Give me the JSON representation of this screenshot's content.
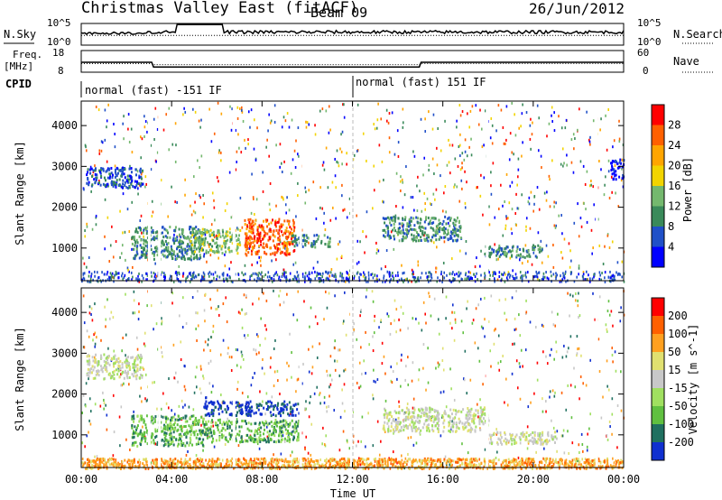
{
  "header": {
    "title": "Christmas Valley East (fitACF)",
    "beam": "Beam 09",
    "date": "26/Jun/2012"
  },
  "colors": {
    "power": [
      "#0000ff",
      "#2050c8",
      "#3a8a5a",
      "#74b86e",
      "#f2d400",
      "#ffa500",
      "#ff6000",
      "#ff0000"
    ],
    "velocity": [
      "#1030d0",
      "#207060",
      "#60c040",
      "#a0e060",
      "#c8c8c8",
      "#e0e070",
      "#ffa020",
      "#ff6000",
      "#ff0000"
    ],
    "gray": "#c8c8c8"
  },
  "nsky": {
    "label": "N.Sky",
    "ticks": [
      "10^5",
      "10^0"
    ],
    "right_label": "N.Search",
    "right_ticks": [
      "10^5",
      "10^0"
    ]
  },
  "freq": {
    "label_line1": "Freq.",
    "label_line2": "[MHz]",
    "ticks": [
      "18",
      "8"
    ],
    "right_label": "Nave",
    "right_ticks": [
      "60",
      "0"
    ]
  },
  "cpid": {
    "label": "CPID",
    "segments": [
      "normal (fast) -151 IF",
      "normal (fast) 151 IF"
    ]
  },
  "chart_data": [
    {
      "type": "heatmap",
      "title": "",
      "xlabel": "",
      "ylabel": "Slant Range [km]",
      "x_ticks": [
        "00:00",
        "04:00",
        "08:00",
        "12:00",
        "16:00",
        "20:00",
        "00:00"
      ],
      "y_ticks": [
        1000,
        2000,
        3000,
        4000
      ],
      "ylim": [
        200,
        4600
      ],
      "xlim_hours": [
        0,
        24
      ],
      "colorbar": {
        "label": "Power [dB]",
        "ticks": [
          4,
          8,
          12,
          16,
          20,
          24,
          28
        ]
      },
      "regions": [
        {
          "t": [
            0.2,
            2.7
          ],
          "r": [
            2500,
            3000
          ],
          "level": 1,
          "note": "blue band"
        },
        {
          "t": [
            2.2,
            5.4
          ],
          "r": [
            750,
            1550
          ],
          "level": 2
        },
        {
          "t": [
            4.8,
            7.0
          ],
          "r": [
            900,
            1500
          ],
          "level": 3
        },
        {
          "t": [
            7.2,
            9.4
          ],
          "r": [
            850,
            1750
          ],
          "level": 6
        },
        {
          "t": [
            9.3,
            11.0
          ],
          "r": [
            1050,
            1350
          ],
          "level": 2
        },
        {
          "t": [
            13.3,
            16.8
          ],
          "r": [
            1200,
            1800
          ],
          "level": 2
        },
        {
          "t": [
            17.8,
            20.4
          ],
          "r": [
            800,
            1100
          ],
          "level": 2
        },
        {
          "t": [
            23.4,
            24.0
          ],
          "r": [
            2700,
            3200
          ],
          "level": 0
        }
      ]
    },
    {
      "type": "heatmap",
      "title": "",
      "xlabel": "Time UT",
      "ylabel": "Slant Range [km]",
      "x_ticks": [
        "00:00",
        "04:00",
        "08:00",
        "12:00",
        "16:00",
        "20:00",
        "00:00"
      ],
      "y_ticks": [
        1000,
        2000,
        3000,
        4000
      ],
      "ylim": [
        200,
        4600
      ],
      "xlim_hours": [
        0,
        24
      ],
      "colorbar": {
        "label": "Velocity [m s^-1]",
        "ticks": [
          200,
          100,
          50,
          15,
          -15,
          -50,
          -100,
          -200
        ]
      },
      "regions": [
        {
          "t": [
            0.2,
            2.7
          ],
          "r": [
            2400,
            3000
          ],
          "level": 4,
          "note": "ground scatter gray"
        },
        {
          "t": [
            2.2,
            5.4
          ],
          "r": [
            750,
            1500
          ],
          "level": 2
        },
        {
          "t": [
            5.4,
            9.6
          ],
          "r": [
            1500,
            1850
          ],
          "level": 0
        },
        {
          "t": [
            5.4,
            9.6
          ],
          "r": [
            850,
            1400
          ],
          "level": 2
        },
        {
          "t": [
            13.3,
            18.0
          ],
          "r": [
            1100,
            1700
          ],
          "level": 4
        },
        {
          "t": [
            18.0,
            21.0
          ],
          "r": [
            800,
            1100
          ],
          "level": 4
        },
        {
          "t": [
            0.0,
            24.0
          ],
          "r": [
            200,
            450
          ],
          "level": 6
        }
      ]
    }
  ]
}
